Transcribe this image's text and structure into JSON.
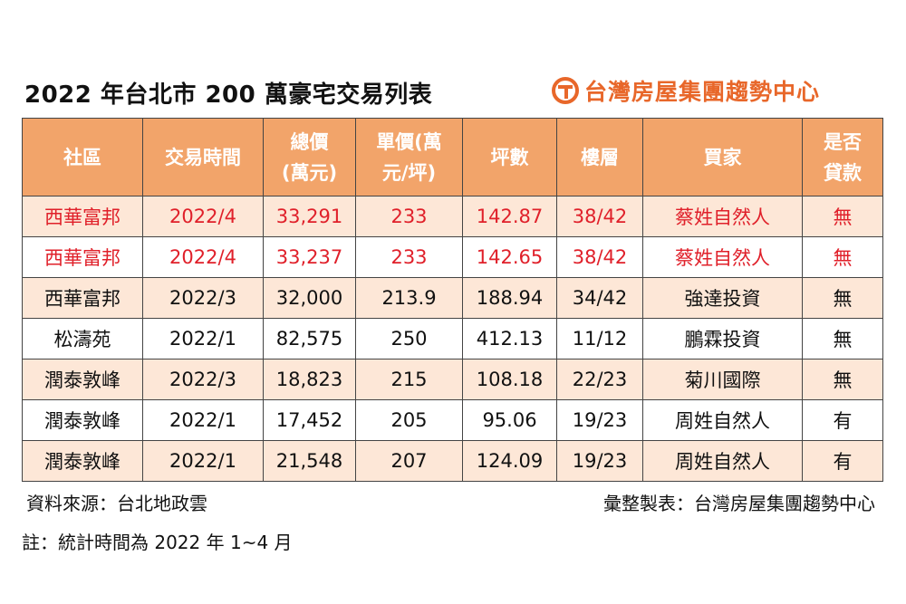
{
  "title": "2022 年台北市 200 萬豪宅交易列表",
  "brand": {
    "name": "台灣房屋集團趨勢中心",
    "color": "#e8672a",
    "logo_icon": "taiwan-realty-logo"
  },
  "colors": {
    "header_bg": "#f2a46a",
    "stripe_bg": "#fde7d7",
    "highlight_text": "#e0202a"
  },
  "table": {
    "headers": [
      [
        "社區"
      ],
      [
        "交易時間"
      ],
      [
        "總價",
        "(萬元)"
      ],
      [
        "單價(萬",
        "元/坪)"
      ],
      [
        "坪數"
      ],
      [
        "樓層"
      ],
      [
        "買家"
      ],
      [
        "是否",
        "貸款"
      ]
    ],
    "rows": [
      [
        "西華富邦",
        "2022/4",
        "33,291",
        "233",
        "142.87",
        "38/42",
        "蔡姓自然人",
        "無"
      ],
      [
        "西華富邦",
        "2022/4",
        "33,237",
        "233",
        "142.65",
        "38/42",
        "蔡姓自然人",
        "無"
      ],
      [
        "西華富邦",
        "2022/3",
        "32,000",
        "213.9",
        "188.94",
        "34/42",
        "強達投資",
        "無"
      ],
      [
        "松濤苑",
        "2022/1",
        "82,575",
        "250",
        "412.13",
        "11/12",
        "鵬霖投資",
        "無"
      ],
      [
        "潤泰敦峰",
        "2022/3",
        "18,823",
        "215",
        "108.18",
        "22/23",
        "菊川國際",
        "無"
      ],
      [
        "潤泰敦峰",
        "2022/1",
        "17,452",
        "205",
        "95.06",
        "19/23",
        "周姓自然人",
        "有"
      ],
      [
        "潤泰敦峰",
        "2022/1",
        "21,548",
        "207",
        "124.09",
        "19/23",
        "周姓自然人",
        "有"
      ]
    ],
    "highlighted_rows": [
      0,
      1
    ]
  },
  "footer": {
    "source": "資料來源：台北地政雲",
    "compiled_by": "彙整製表：台灣房屋集團趨勢中心",
    "note": "註：統計時間為 2022 年 1~4 月"
  }
}
